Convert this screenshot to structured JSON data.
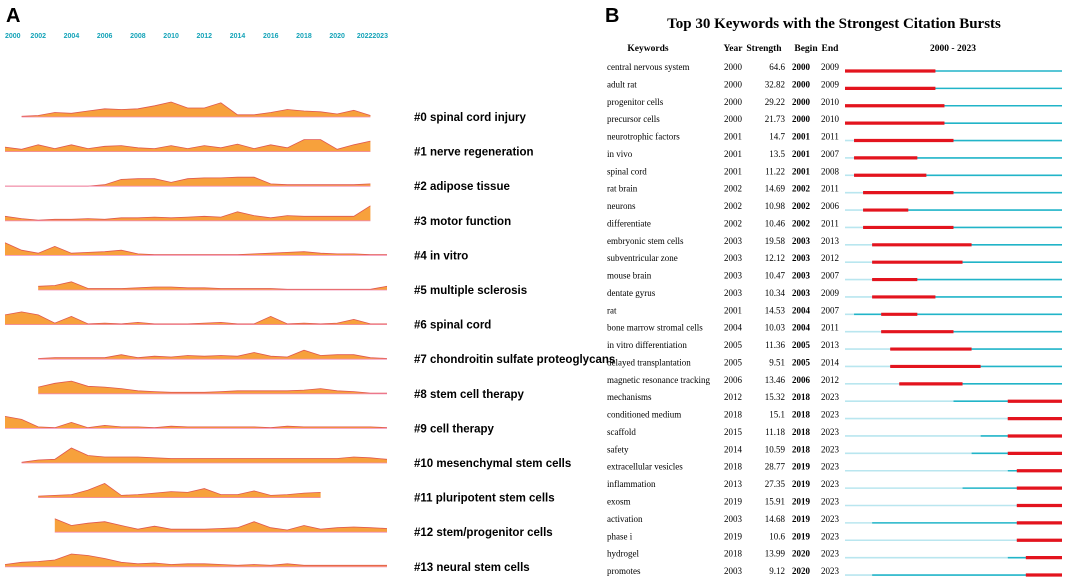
{
  "chart_data": [
    {
      "type": "area",
      "panel_label": "A",
      "description_title": "",
      "year_ticks": [
        "2000",
        "2002",
        "2004",
        "2006",
        "2008",
        "2010",
        "2012",
        "2014",
        "2016",
        "2018",
        "2020",
        "20222023"
      ],
      "colors": {
        "fill": "#f7a13c",
        "stroke": "#e0574f",
        "tick": "#14a3b8"
      },
      "x_domain": [
        2000,
        2023
      ],
      "series": [
        {
          "name": "#0 spinal cord injury",
          "start": 2001,
          "end": 2022,
          "values": [
            0.05,
            0.1,
            0.3,
            0.25,
            0.4,
            0.55,
            0.5,
            0.55,
            0.75,
            1.0,
            0.6,
            0.6,
            0.95,
            0.15,
            0.15,
            0.3,
            0.5,
            0.4,
            0.35,
            0.2,
            0.45,
            0.1
          ]
        },
        {
          "name": "#1 nerve regeneration",
          "start": 2000,
          "end": 2022,
          "values": [
            0.3,
            0.15,
            0.45,
            0.2,
            0.45,
            0.2,
            0.35,
            0.4,
            0.25,
            0.2,
            0.4,
            0.2,
            0.4,
            0.25,
            0.5,
            0.2,
            0.45,
            0.25,
            0.8,
            0.8,
            0.15,
            0.45,
            0.7
          ]
        },
        {
          "name": "#2 adipose tissue",
          "start": 2000,
          "end": 2022,
          "values": [
            0,
            0,
            0,
            0,
            0,
            0,
            0.1,
            0.45,
            0.5,
            0.5,
            0.25,
            0.5,
            0.55,
            0.55,
            0.6,
            0.6,
            0.15,
            0.1,
            0.1,
            0.1,
            0.1,
            0.1,
            0.15
          ]
        },
        {
          "name": "#3 motor function",
          "start": 2000,
          "end": 2022,
          "values": [
            0.3,
            0.15,
            0.05,
            0.1,
            0.1,
            0.15,
            0.1,
            0.2,
            0.2,
            0.25,
            0.2,
            0.25,
            0.3,
            0.25,
            0.6,
            0.35,
            0.2,
            0.35,
            0.3,
            0.3,
            0.3,
            0.3,
            1.0
          ]
        },
        {
          "name": "#4 in vitro",
          "start": 2000,
          "end": 2023,
          "values": [
            0.85,
            0.35,
            0.15,
            0.6,
            0.15,
            0.2,
            0.25,
            0.35,
            0.1,
            0.05,
            0.05,
            0.05,
            0.05,
            0.05,
            0.05,
            0.1,
            0.15,
            0.2,
            0.25,
            0.15,
            0.1,
            0.1,
            0.05,
            0.05
          ]
        },
        {
          "name": "#5 multiple sclerosis",
          "start": 2002,
          "end": 2023,
          "values": [
            0.25,
            0.3,
            0.55,
            0.1,
            0.1,
            0.1,
            0.15,
            0.2,
            0.2,
            0.15,
            0.15,
            0.1,
            0.1,
            0.1,
            0.1,
            0.05,
            0.05,
            0.05,
            0.05,
            0.05,
            0.05,
            0.25
          ]
        },
        {
          "name": "#6 spinal cord",
          "start": 2000,
          "end": 2023,
          "values": [
            0.65,
            0.85,
            0.65,
            0.1,
            0.55,
            0.05,
            0.1,
            0.05,
            0.15,
            0.05,
            0.05,
            0.05,
            0.1,
            0.15,
            0.05,
            0.05,
            0.55,
            0.05,
            0.1,
            0.05,
            0.1,
            0.35,
            0.05,
            0.05
          ]
        },
        {
          "name": "#7 chondroitin sulfate proteoglycans",
          "start": 2002,
          "end": 2023,
          "values": [
            0.05,
            0.1,
            0.1,
            0.1,
            0.1,
            0.3,
            0.1,
            0.2,
            0.15,
            0.25,
            0.2,
            0.25,
            0.2,
            0.45,
            0.2,
            0.15,
            0.6,
            0.25,
            0.3,
            0.3,
            0.1,
            0.05
          ]
        },
        {
          "name": "#8 stem cell therapy",
          "start": 2002,
          "end": 2023,
          "values": [
            0.45,
            0.7,
            0.85,
            0.5,
            0.45,
            0.35,
            0.2,
            0.15,
            0.1,
            0.1,
            0.1,
            0.15,
            0.2,
            0.2,
            0.2,
            0.2,
            0.25,
            0.35,
            0.2,
            0.15,
            0.05,
            0.05
          ]
        },
        {
          "name": "#9 cell therapy",
          "start": 2000,
          "end": 2023,
          "values": [
            0.8,
            0.6,
            0.1,
            0.05,
            0.4,
            0.05,
            0.2,
            0.1,
            0.1,
            0.05,
            0.15,
            0.1,
            0.1,
            0.1,
            0.1,
            0.1,
            0.05,
            0.15,
            0.1,
            0.1,
            0.1,
            0.1,
            0.1,
            0.05
          ]
        },
        {
          "name": "#10 mesenchymal stem cells",
          "start": 2001,
          "end": 2023,
          "values": [
            0.05,
            0.2,
            0.25,
            1.0,
            0.5,
            0.4,
            0.4,
            0.4,
            0.35,
            0.3,
            0.3,
            0.3,
            0.3,
            0.3,
            0.3,
            0.3,
            0.3,
            0.3,
            0.3,
            0.3,
            0.4,
            0.35,
            0.25
          ]
        },
        {
          "name": "#11 pluripotent stem cells",
          "start": 2002,
          "end": 2019,
          "values": [
            0.1,
            0.15,
            0.2,
            0.5,
            0.95,
            0.15,
            0.2,
            0.3,
            0.4,
            0.35,
            0.6,
            0.2,
            0.2,
            0.45,
            0.15,
            0.2,
            0.3,
            0.35
          ]
        },
        {
          "name": "#12 stem/progenitor cells",
          "start": 2003,
          "end": 2023,
          "values": [
            0.9,
            0.45,
            0.6,
            0.7,
            0.45,
            0.2,
            0.4,
            0.2,
            0.2,
            0.2,
            0.25,
            0.3,
            0.7,
            0.3,
            0.15,
            0.45,
            0.2,
            0.3,
            0.35,
            0.3,
            0.25
          ]
        },
        {
          "name": "#13 neural stem cells",
          "start": 2000,
          "end": 2023,
          "values": [
            0.15,
            0.3,
            0.35,
            0.45,
            0.85,
            0.75,
            0.55,
            0.3,
            0.2,
            0.25,
            0.15,
            0.2,
            0.2,
            0.15,
            0.1,
            0.15,
            0.1,
            0.2,
            0.1,
            0.1,
            0.1,
            0.1,
            0.1,
            0.1
          ]
        }
      ]
    },
    {
      "type": "table",
      "panel_label": "B",
      "title": "Top 30 Keywords with the Strongest Citation Bursts",
      "columns": [
        "Keywords",
        "Year",
        "Strength",
        "Begin",
        "End",
        "2000 - 2023"
      ],
      "x_domain": [
        2000,
        2023
      ],
      "colors": {
        "burst": "#e3141e",
        "active": "#21b4c8",
        "inactive": "#b9e6ef"
      },
      "rows": [
        {
          "keyword": "central nervous system",
          "year": "2000",
          "strength": "64.6",
          "begin": "2000",
          "end": "2009"
        },
        {
          "keyword": "adult rat",
          "year": "2000",
          "strength": "32.82",
          "begin": "2000",
          "end": "2009"
        },
        {
          "keyword": "progenitor cells",
          "year": "2000",
          "strength": "29.22",
          "begin": "2000",
          "end": "2010"
        },
        {
          "keyword": "precursor cells",
          "year": "2000",
          "strength": "21.73",
          "begin": "2000",
          "end": "2010"
        },
        {
          "keyword": "neurotrophic factors",
          "year": "2001",
          "strength": "14.7",
          "begin": "2001",
          "end": "2011"
        },
        {
          "keyword": "in vivo",
          "year": "2001",
          "strength": "13.5",
          "begin": "2001",
          "end": "2007"
        },
        {
          "keyword": "spinal cord",
          "year": "2001",
          "strength": "11.22",
          "begin": "2001",
          "end": "2008"
        },
        {
          "keyword": "rat brain",
          "year": "2002",
          "strength": "14.69",
          "begin": "2002",
          "end": "2011"
        },
        {
          "keyword": "neurons",
          "year": "2002",
          "strength": "10.98",
          "begin": "2002",
          "end": "2006"
        },
        {
          "keyword": "differentiate",
          "year": "2002",
          "strength": "10.46",
          "begin": "2002",
          "end": "2011"
        },
        {
          "keyword": "embryonic stem cells",
          "year": "2003",
          "strength": "19.58",
          "begin": "2003",
          "end": "2013"
        },
        {
          "keyword": "subventricular zone",
          "year": "2003",
          "strength": "12.12",
          "begin": "2003",
          "end": "2012"
        },
        {
          "keyword": "mouse brain",
          "year": "2003",
          "strength": "10.47",
          "begin": "2003",
          "end": "2007"
        },
        {
          "keyword": "dentate gyrus",
          "year": "2003",
          "strength": "10.34",
          "begin": "2003",
          "end": "2009"
        },
        {
          "keyword": "rat",
          "year": "2001",
          "strength": "14.53",
          "begin": "2004",
          "end": "2007"
        },
        {
          "keyword": "bone marrow stromal cells",
          "year": "2004",
          "strength": "10.03",
          "begin": "2004",
          "end": "2011"
        },
        {
          "keyword": "in vitro differentiation",
          "year": "2005",
          "strength": "11.36",
          "begin": "2005",
          "end": "2013"
        },
        {
          "keyword": "delayed transplantation",
          "year": "2005",
          "strength": "9.51",
          "begin": "2005",
          "end": "2014"
        },
        {
          "keyword": "magnetic resonance tracking",
          "year": "2006",
          "strength": "13.46",
          "begin": "2006",
          "end": "2012"
        },
        {
          "keyword": "mechanisms",
          "year": "2012",
          "strength": "15.32",
          "begin": "2018",
          "end": "2023"
        },
        {
          "keyword": "conditioned medium",
          "year": "2018",
          "strength": "15.1",
          "begin": "2018",
          "end": "2023"
        },
        {
          "keyword": "scaffold",
          "year": "2015",
          "strength": "11.18",
          "begin": "2018",
          "end": "2023"
        },
        {
          "keyword": "safety",
          "year": "2014",
          "strength": "10.59",
          "begin": "2018",
          "end": "2023"
        },
        {
          "keyword": "extracellular vesicles",
          "year": "2018",
          "strength": "28.77",
          "begin": "2019",
          "end": "2023"
        },
        {
          "keyword": "inflammation",
          "year": "2013",
          "strength": "27.35",
          "begin": "2019",
          "end": "2023"
        },
        {
          "keyword": "exosm",
          "year": "2019",
          "strength": "15.91",
          "begin": "2019",
          "end": "2023"
        },
        {
          "keyword": "activation",
          "year": "2003",
          "strength": "14.68",
          "begin": "2019",
          "end": "2023"
        },
        {
          "keyword": "phase i",
          "year": "2019",
          "strength": "10.6",
          "begin": "2019",
          "end": "2023"
        },
        {
          "keyword": "hydrogel",
          "year": "2018",
          "strength": "13.99",
          "begin": "2020",
          "end": "2023"
        },
        {
          "keyword": "promotes",
          "year": "2003",
          "strength": "9.12",
          "begin": "2020",
          "end": "2023"
        }
      ]
    }
  ]
}
